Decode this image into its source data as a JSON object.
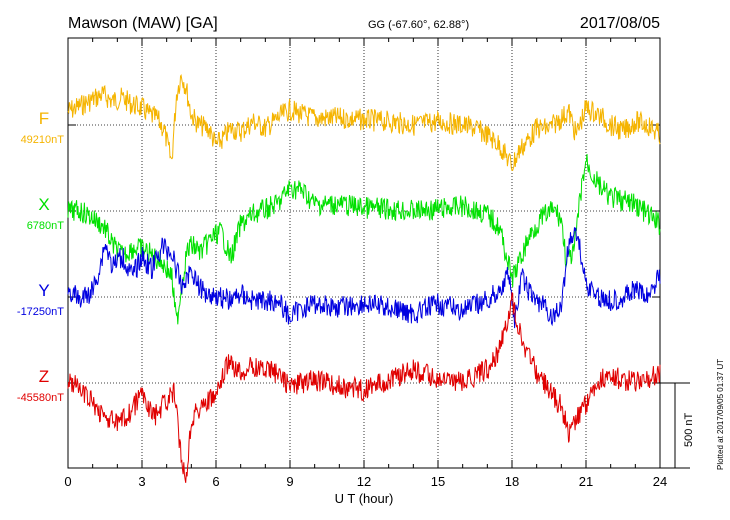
{
  "header": {
    "station": "Mawson (MAW)  [GA]",
    "coords": "GG (-67.60°,  62.88°)",
    "date": "2017/08/05"
  },
  "chart_data": {
    "type": "line",
    "title": "Mawson (MAW)  [GA]",
    "xlabel": "U T (hour)",
    "xlim": [
      0,
      24
    ],
    "x_ticks": [
      "0",
      "3",
      "6",
      "9",
      "12",
      "15",
      "18",
      "21",
      "24"
    ],
    "grid": true,
    "scale_bar": {
      "label": "500 nT",
      "value_nT": 500
    },
    "plotted_note": "Plotted at 2017/09/05 01:37 UT",
    "series": [
      {
        "name": "F",
        "baseline_label": "49210nT",
        "baseline_nT": 49210,
        "color": "#f5b400",
        "x": [
          0,
          0.6,
          1.0,
          1.4,
          1.8,
          2.2,
          2.6,
          3.0,
          3.3,
          3.6,
          3.9,
          4.2,
          4.4,
          4.6,
          4.8,
          5.0,
          5.3,
          5.7,
          6.0,
          6.3,
          6.6,
          7.0,
          7.5,
          8.0,
          8.5,
          9.0,
          9.5,
          10,
          11,
          12,
          13,
          14,
          15,
          16,
          16.5,
          17,
          17.5,
          18,
          18.3,
          18.7,
          19,
          19.5,
          20,
          20.3,
          20.6,
          21,
          21.5,
          22,
          22.5,
          23,
          23.5,
          24
        ],
        "values": [
          80,
          120,
          150,
          180,
          140,
          160,
          120,
          100,
          60,
          40,
          -30,
          -220,
          180,
          300,
          210,
          60,
          0,
          -20,
          -120,
          -80,
          -20,
          -40,
          20,
          -20,
          40,
          90,
          60,
          40,
          40,
          30,
          20,
          0,
          20,
          0,
          -20,
          -60,
          -120,
          -240,
          -150,
          -80,
          -20,
          -20,
          40,
          80,
          -60,
          100,
          60,
          0,
          -40,
          20,
          0,
          -60
        ]
      },
      {
        "name": "X",
        "baseline_label": "6780nT",
        "baseline_nT": 6780,
        "color": "#00e000",
        "x": [
          0,
          0.5,
          1.0,
          1.5,
          1.8,
          2.2,
          2.6,
          3.0,
          3.4,
          3.8,
          4.2,
          4.4,
          4.6,
          4.8,
          5.0,
          5.4,
          5.8,
          6.2,
          6.6,
          7.0,
          7.5,
          8.0,
          8.5,
          9.0,
          9.5,
          10,
          11,
          12,
          13,
          14,
          15,
          16,
          17,
          17.5,
          18,
          18.3,
          18.7,
          19.2,
          19.7,
          20.0,
          20.2,
          20.5,
          20.8,
          21,
          21.3,
          21.7,
          22,
          23,
          24
        ],
        "values": [
          0,
          0,
          -40,
          -100,
          -200,
          -260,
          -220,
          -220,
          -260,
          -300,
          -380,
          -660,
          -450,
          -250,
          -200,
          -240,
          -160,
          -120,
          -280,
          -80,
          -20,
          10,
          40,
          140,
          120,
          40,
          40,
          20,
          10,
          0,
          10,
          30,
          -20,
          -100,
          -400,
          -300,
          -150,
          -40,
          10,
          -50,
          -300,
          -250,
          120,
          300,
          200,
          120,
          80,
          40,
          -80
        ]
      },
      {
        "name": "Y",
        "baseline_label": "-17250nT",
        "baseline_nT": -17250,
        "color": "#0000e0",
        "x": [
          0,
          0.5,
          1.0,
          1.3,
          1.5,
          1.8,
          2.2,
          2.6,
          3.0,
          3.4,
          3.8,
          4.2,
          4.6,
          5.0,
          5.4,
          5.8,
          6.2,
          6.6,
          7.0,
          7.5,
          8.0,
          8.5,
          9.0,
          9.5,
          10,
          11,
          12,
          13,
          14,
          15,
          16,
          17,
          17.5,
          17.9,
          18.1,
          18.4,
          18.8,
          19.2,
          19.6,
          20.0,
          20.3,
          20.6,
          21,
          21.5,
          22,
          22.5,
          23,
          23.5,
          24
        ],
        "values": [
          40,
          -20,
          40,
          180,
          320,
          180,
          240,
          120,
          240,
          160,
          300,
          260,
          60,
          160,
          40,
          20,
          0,
          -20,
          20,
          -20,
          -20,
          -20,
          -120,
          -60,
          -40,
          -60,
          -40,
          -60,
          -100,
          -40,
          -80,
          -20,
          40,
          140,
          -160,
          120,
          0,
          -40,
          -120,
          -60,
          320,
          400,
          80,
          0,
          -20,
          0,
          40,
          0,
          140
        ]
      },
      {
        "name": "Z",
        "baseline_label": "-45580nT",
        "baseline_nT": -45580,
        "color": "#e00000",
        "x": [
          0,
          0.5,
          1.0,
          1.5,
          2.0,
          2.5,
          3.0,
          3.5,
          4.0,
          4.3,
          4.6,
          4.8,
          5.0,
          5.5,
          6.0,
          6.5,
          7.0,
          7.5,
          8.0,
          8.5,
          9.0,
          9.5,
          10,
          11,
          12,
          13,
          14,
          15,
          16,
          17,
          17.5,
          18.0,
          18.3,
          18.6,
          19,
          19.5,
          20,
          20.3,
          20.6,
          21,
          21.5,
          22,
          23,
          24
        ],
        "values": [
          20,
          -40,
          -120,
          -200,
          -240,
          -180,
          -60,
          -200,
          -100,
          -60,
          -440,
          -560,
          -200,
          -120,
          -80,
          120,
          60,
          100,
          80,
          60,
          -20,
          0,
          20,
          -20,
          -40,
          20,
          80,
          20,
          0,
          80,
          200,
          480,
          320,
          180,
          60,
          -40,
          -140,
          -300,
          -200,
          -120,
          20,
          40,
          0,
          60
        ]
      }
    ]
  }
}
